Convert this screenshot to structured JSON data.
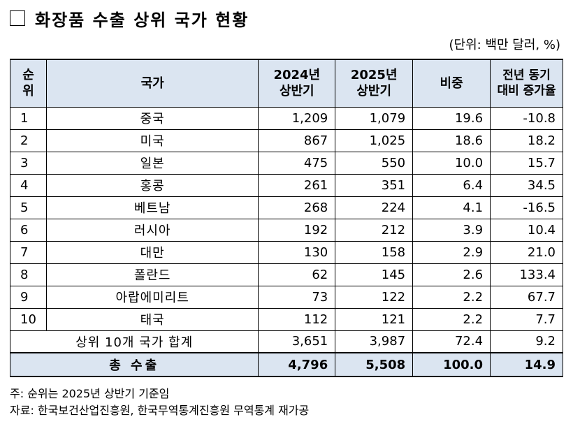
{
  "title": "화장품 수출 상위 국가 현황",
  "unit": "(단위: 백만 달러, %)",
  "headers": {
    "rank_line1": "순",
    "rank_line2": "위",
    "country": "국가",
    "y2024_line1": "2024년",
    "y2024_line2": "상반기",
    "y2025_line1": "2025년",
    "y2025_line2": "상반기",
    "share": "비중",
    "rate_line1": "전년 동기",
    "rate_line2": "대비 증가율"
  },
  "rows": [
    {
      "rank": "1",
      "country": "중국",
      "y2024": "1,209",
      "y2025": "1,079",
      "share": "19.6",
      "rate": "-10.8"
    },
    {
      "rank": "2",
      "country": "미국",
      "y2024": "867",
      "y2025": "1,025",
      "share": "18.6",
      "rate": "18.2"
    },
    {
      "rank": "3",
      "country": "일본",
      "y2024": "475",
      "y2025": "550",
      "share": "10.0",
      "rate": "15.7"
    },
    {
      "rank": "4",
      "country": "홍콩",
      "y2024": "261",
      "y2025": "351",
      "share": "6.4",
      "rate": "34.5"
    },
    {
      "rank": "5",
      "country": "베트남",
      "y2024": "268",
      "y2025": "224",
      "share": "4.1",
      "rate": "-16.5"
    },
    {
      "rank": "6",
      "country": "러시아",
      "y2024": "192",
      "y2025": "212",
      "share": "3.9",
      "rate": "10.4"
    },
    {
      "rank": "7",
      "country": "대만",
      "y2024": "130",
      "y2025": "158",
      "share": "2.9",
      "rate": "21.0"
    },
    {
      "rank": "8",
      "country": "폴란드",
      "y2024": "62",
      "y2025": "145",
      "share": "2.6",
      "rate": "133.4"
    },
    {
      "rank": "9",
      "country": "아랍에미리트",
      "y2024": "73",
      "y2025": "122",
      "share": "2.2",
      "rate": "67.7"
    },
    {
      "rank": "10",
      "country": "태국",
      "y2024": "112",
      "y2025": "121",
      "share": "2.2",
      "rate": "7.7"
    }
  ],
  "subtotal": {
    "label": "상위 10개 국가 합계",
    "y2024": "3,651",
    "y2025": "3,987",
    "share": "72.4",
    "rate": "9.2"
  },
  "total": {
    "label": "총 수출",
    "y2024": "4,796",
    "y2025": "5,508",
    "share": "100.0",
    "rate": "14.9"
  },
  "notes": {
    "note": "주: 순위는 2025년 상반기 기준임",
    "source": "자료: 한국보건산업진흥원, 한국무역통계진흥원 무역통계 재가공"
  }
}
